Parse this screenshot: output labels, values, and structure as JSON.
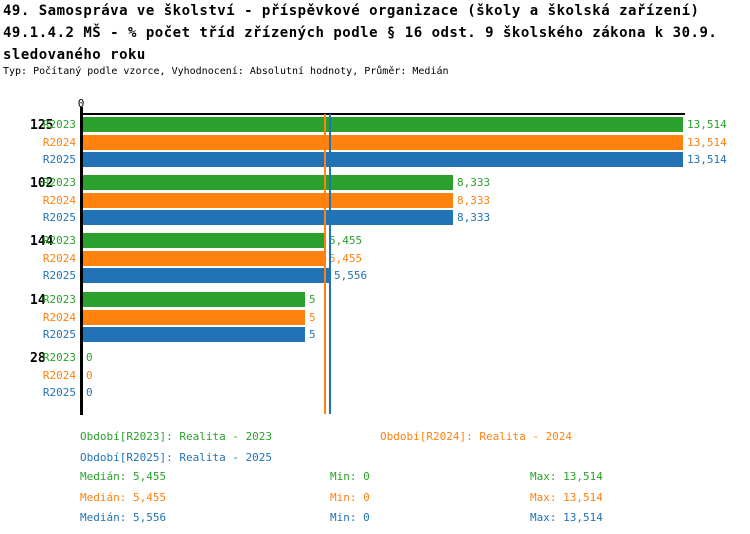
{
  "header": {
    "title_line1": "49. Samospráva ve školství - příspěvkové organizace (školy a školská zařízení)",
    "title_line2": "49.1.4.2 MŠ - % počet tříd zřízených podle § 16 odst. 9 školského zákona k 30.9.",
    "title_line3": "sledovaného roku",
    "meta_line": "Typ: Počítaný podle vzorce, Vyhodnocení: Absolutní hodnoty, Průměr: Medián"
  },
  "colors": {
    "r2023": "#2ca02c",
    "r2024": "#ff810e",
    "r2025": "#2273b5",
    "axis": "#000000"
  },
  "chart_data": {
    "type": "bar",
    "orientation": "horizontal",
    "title": "49.1.4.2 MŠ - % počet tříd zřízených podle § 16 odst. 9 školského zákona k 30.9. sledovaného roku",
    "xlabel": "",
    "ylabel": "",
    "xlim": [
      0,
      13.514
    ],
    "origin_tick_label": "0",
    "grid": false,
    "legend_position": "bottom",
    "categories": [
      "125",
      "102",
      "144",
      "14",
      "28"
    ],
    "series": [
      {
        "name": "R2023",
        "color": "#2ca02c",
        "values": [
          13.514,
          8.333,
          5.455,
          5,
          0
        ],
        "value_labels": [
          "13,514",
          "8,333",
          "5,455",
          "5",
          "0"
        ],
        "median": 5.455,
        "min": 0,
        "max": 13.514
      },
      {
        "name": "R2024",
        "color": "#ff810e",
        "values": [
          13.514,
          8.333,
          5.455,
          5,
          0
        ],
        "value_labels": [
          "13,514",
          "8,333",
          "5,455",
          "5",
          "0"
        ],
        "median": 5.455,
        "min": 0,
        "max": 13.514
      },
      {
        "name": "R2025",
        "color": "#2273b5",
        "values": [
          13.514,
          8.333,
          5.556,
          5,
          0
        ],
        "value_labels": [
          "13,514",
          "8,333",
          "5,556",
          "5",
          "0"
        ],
        "median": 5.556,
        "min": 0,
        "max": 13.514
      }
    ]
  },
  "legend": {
    "r2023": "Období[R2023]: Realita - 2023",
    "r2024": "Období[R2024]: Realita - 2024",
    "r2025": "Období[R2025]: Realita - 2025"
  },
  "stats": {
    "rows": [
      {
        "median": "Medián: 5,455",
        "min": "Min: 0",
        "max": "Max: 13,514"
      },
      {
        "median": "Medián: 5,455",
        "min": "Min: 0",
        "max": "Max: 13,514"
      },
      {
        "median": "Medián: 5,556",
        "min": "Min: 0",
        "max": "Max: 13,514"
      }
    ]
  }
}
